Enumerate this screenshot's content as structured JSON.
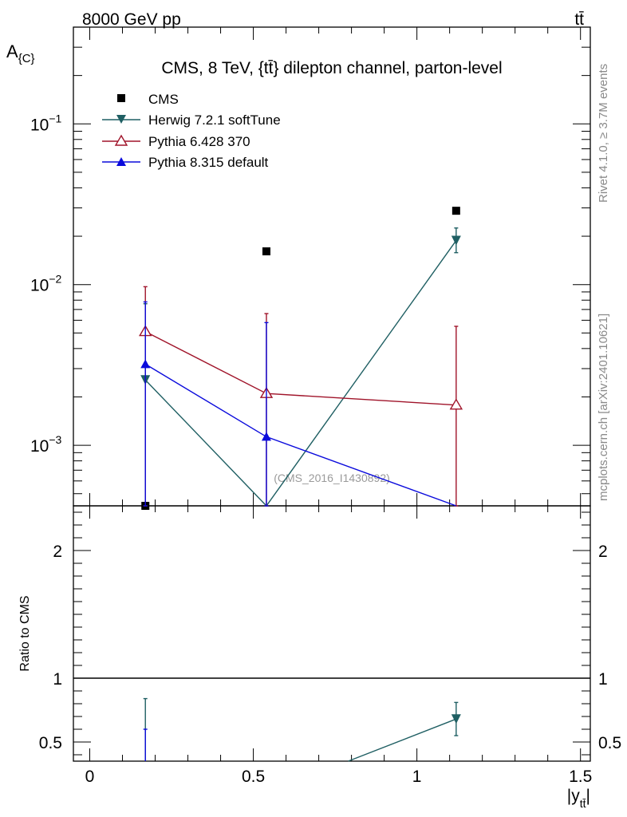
{
  "header": {
    "left": "8000 GeV pp",
    "right": "tt̄"
  },
  "side_labels": {
    "rivet": "Rivet 4.1.0, ≥ 3.7M events",
    "mcplots": "mcplots.cern.ch [arXiv:2401.10621]"
  },
  "chart_data": [
    {
      "type": "scatter",
      "title": "CMS, 8 TeV, {tt̄} dilepton channel, parton-level",
      "ylabel": "A_{C}",
      "ylabel_main": "A",
      "ylabel_sub": "{C}",
      "yscale": "log",
      "ylim": [
        0.00042,
        0.4
      ],
      "xlim": [
        -0.05,
        1.53
      ],
      "watermark": "(CMS_2016_I1430892)",
      "ytick_labels": [
        {
          "value": 0.1,
          "base": "10",
          "exp": "−1"
        },
        {
          "value": 0.01,
          "base": "10",
          "exp": "−2"
        },
        {
          "value": 0.001,
          "base": "10",
          "exp": "−3"
        }
      ],
      "series": [
        {
          "name": "CMS",
          "marker": "square",
          "color": "#000000",
          "line": false,
          "points": [
            {
              "x": 0.17,
              "y": 0.00042
            },
            {
              "x": 0.54,
              "y": 0.0161
            },
            {
              "x": 1.12,
              "y": 0.0288
            }
          ]
        },
        {
          "name": "Herwig 7.2.1 softTune",
          "marker": "triangle-down",
          "color": "#1f5f63",
          "line": true,
          "points": [
            {
              "x": 0.17,
              "y": 0.00255,
              "ylo": 0.00042,
              "yhi": 0.0076
            },
            {
              "x": 0.54,
              "y": 0.00042
            },
            {
              "x": 1.12,
              "y": 0.0188,
              "ylo": 0.0158,
              "yhi": 0.0225
            }
          ]
        },
        {
          "name": "Pythia 6.428 370",
          "marker": "triangle-up-open",
          "color": "#a0142a",
          "line": true,
          "points": [
            {
              "x": 0.17,
              "y": 0.0051,
              "ylo": 0.00042,
              "yhi": 0.0097
            },
            {
              "x": 0.54,
              "y": 0.0021,
              "ylo": 0.00042,
              "yhi": 0.0066
            },
            {
              "x": 1.12,
              "y": 0.00178,
              "ylo": 0.00042,
              "yhi": 0.0055
            }
          ]
        },
        {
          "name": "Pythia 8.315 default",
          "marker": "triangle-up",
          "color": "#0a0adc",
          "line": true,
          "points": [
            {
              "x": 0.17,
              "y": 0.0032,
              "ylo": 0.00042,
              "yhi": 0.0078
            },
            {
              "x": 0.54,
              "y": 0.00113,
              "ylo": 0.00042,
              "yhi": 0.0058
            },
            {
              "x": 1.12,
              "y": 0.00042
            }
          ]
        }
      ]
    },
    {
      "type": "line",
      "ylabel": "Ratio to CMS",
      "xlabel": "|y_{tt̄}|",
      "xlabel_main": "|y",
      "xlabel_sub": "tt̄",
      "xlabel_close": "|",
      "xlim": [
        -0.05,
        1.53
      ],
      "ylim": [
        0.35,
        2.35
      ],
      "reference": 1,
      "xtick_labels": [
        "0",
        "0.5",
        "1",
        "1.5"
      ],
      "ytick_labels": [
        "0.5",
        "1",
        "2"
      ],
      "series": [
        {
          "name": "Herwig 7.2.1 softTune",
          "color": "#1f5f63",
          "points": [
            {
              "x": 0.79,
              "y": 0.35
            },
            {
              "x": 1.12,
              "y": 0.68,
              "ylo": 0.55,
              "yhi": 0.81
            }
          ],
          "errbars": [
            {
              "x": 0.17,
              "ylo": 0.35,
              "yhi": 0.84
            }
          ]
        },
        {
          "name": "Pythia 8.315 default",
          "color": "#0a0adc",
          "points": [],
          "errbars": [
            {
              "x": 0.17,
              "ylo": 0.35,
              "yhi": 0.6
            }
          ]
        }
      ]
    }
  ]
}
